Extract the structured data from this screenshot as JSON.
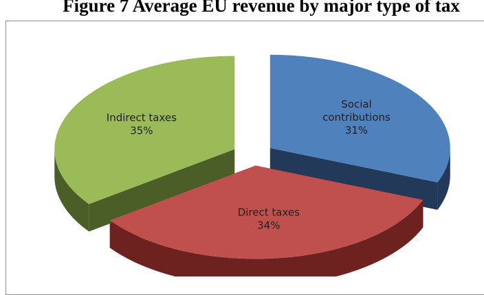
{
  "figure": {
    "title": "Figure 7 Average EU revenue by major type of tax"
  },
  "chart_data": {
    "type": "pie",
    "title": "",
    "categories": [
      "Social contributions",
      "Direct taxes",
      "Indirect taxes"
    ],
    "values": [
      31,
      34,
      35
    ],
    "unit": "%",
    "legend": "none",
    "style": "3d-exploded",
    "colors": [
      "#4f81bd",
      "#c0504d",
      "#9bbb59"
    ],
    "side_colors": [
      "#22395a",
      "#6e2220",
      "#4c5e27"
    ],
    "labels": [
      {
        "lines": [
          "Social",
          "contributions"
        ],
        "pct": "31%"
      },
      {
        "lines": [
          "Direct taxes"
        ],
        "pct": "34%"
      },
      {
        "lines": [
          "Indirect taxes"
        ],
        "pct": "35%"
      }
    ]
  }
}
